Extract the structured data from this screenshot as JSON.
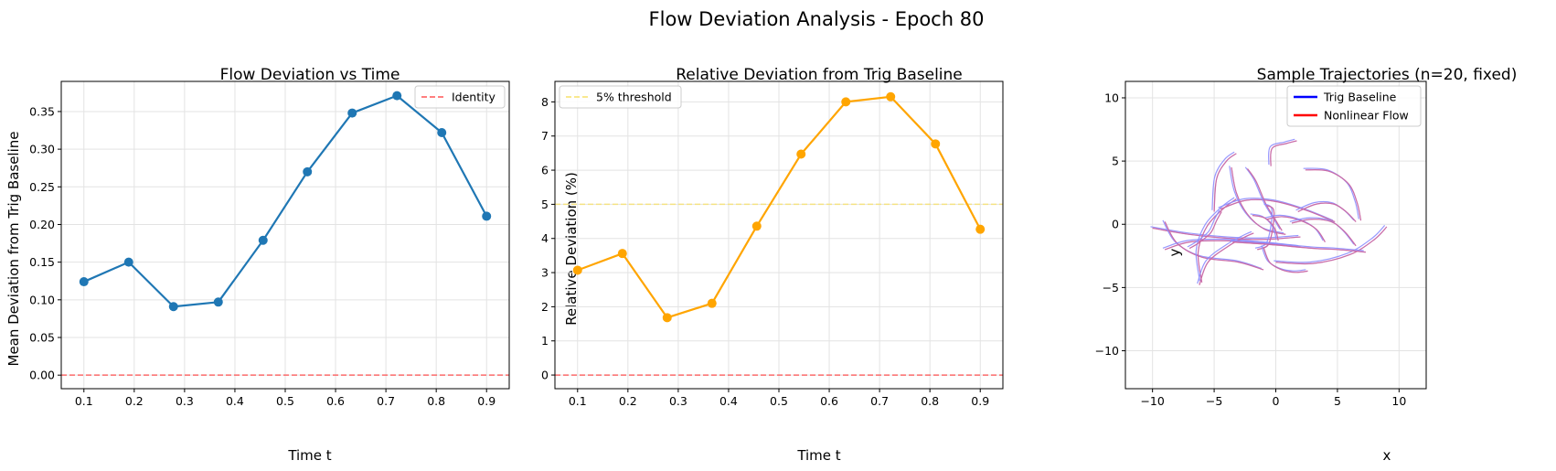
{
  "figure": {
    "suptitle": "Flow Deviation Analysis - Epoch 80"
  },
  "chart_data": [
    {
      "type": "line",
      "title": "Flow Deviation vs Time",
      "xlabel": "Time t",
      "ylabel": "Mean Deviation from Trig Baseline",
      "xlim": [
        0.055,
        0.945
      ],
      "ylim": [
        -0.018,
        0.39
      ],
      "xticks": [
        "0.1",
        "0.2",
        "0.3",
        "0.4",
        "0.5",
        "0.6",
        "0.7",
        "0.8",
        "0.9"
      ],
      "yticks": [
        "0.00",
        "0.05",
        "0.10",
        "0.15",
        "0.20",
        "0.25",
        "0.30",
        "0.35"
      ],
      "grid": true,
      "legend": {
        "position": "top-right",
        "entries": [
          "Identity"
        ]
      },
      "series": [
        {
          "color": "#1f77b4",
          "x": [
            0.1,
            0.189,
            0.278,
            0.367,
            0.456,
            0.544,
            0.633,
            0.722,
            0.811,
            0.9
          ],
          "y": [
            0.124,
            0.15,
            0.091,
            0.097,
            0.179,
            0.27,
            0.348,
            0.371,
            0.322,
            0.211
          ]
        }
      ],
      "reference_lines": [
        {
          "name": "Identity",
          "y": 0,
          "color": "#ff5555",
          "style": "dashed"
        }
      ]
    },
    {
      "type": "line",
      "title": "Relative Deviation from Trig Baseline",
      "xlabel": "Time t",
      "ylabel": "Relative Deviation (%)",
      "xlim": [
        0.055,
        0.945
      ],
      "ylim": [
        -0.4,
        8.6
      ],
      "xticks": [
        "0.1",
        "0.2",
        "0.3",
        "0.4",
        "0.5",
        "0.6",
        "0.7",
        "0.8",
        "0.9"
      ],
      "yticks": [
        "0",
        "1",
        "2",
        "3",
        "4",
        "5",
        "6",
        "7",
        "8"
      ],
      "grid": true,
      "legend": {
        "position": "top-left",
        "entries": [
          "5% threshold"
        ]
      },
      "series": [
        {
          "color": "#ffa500",
          "x": [
            0.1,
            0.189,
            0.278,
            0.367,
            0.456,
            0.544,
            0.633,
            0.722,
            0.811,
            0.9
          ],
          "y": [
            3.07,
            3.56,
            1.68,
            2.1,
            4.36,
            6.47,
            8.0,
            8.15,
            6.77,
            4.27
          ]
        }
      ],
      "reference_lines": [
        {
          "name": "5% threshold",
          "y": 5,
          "color": "#f7e26b",
          "style": "dashed"
        },
        {
          "y": 0,
          "color": "#ff5555",
          "style": "dashed"
        }
      ]
    },
    {
      "type": "line",
      "title": "Sample Trajectories (n=20, fixed)",
      "xlabel": "x",
      "ylabel": "y",
      "xlim": [
        -12.2,
        12.2
      ],
      "ylim": [
        -13,
        11.3
      ],
      "xticks": [
        "−10",
        "−5",
        "0",
        "5",
        "10"
      ],
      "yticks": [
        "−10",
        "−5",
        "0",
        "5",
        "10"
      ],
      "grid": true,
      "legend": {
        "position": "top-right",
        "entries": [
          "Trig Baseline",
          "Nonlinear Flow"
        ]
      },
      "colors": {
        "trig": "#0000ff",
        "flow": "#ff0000",
        "trig_light": "#8c8cff",
        "flow_light": "#ff8c8c",
        "overlap": "#b35fb3"
      },
      "trajectories": [
        {
          "points": [
            [
              -10,
              -0.3
            ],
            [
              -7,
              -0.8
            ],
            [
              -4,
              -1.1
            ],
            [
              -1,
              -1.2
            ],
            [
              2,
              -1.0
            ]
          ]
        },
        {
          "points": [
            [
              -9,
              0.2
            ],
            [
              -8,
              -1.5
            ],
            [
              -6,
              -2.6
            ],
            [
              -3,
              -3.0
            ],
            [
              -1,
              -3.6
            ]
          ]
        },
        {
          "points": [
            [
              -9,
              -2.0
            ],
            [
              -7,
              -1.4
            ],
            [
              -4,
              -1.3
            ],
            [
              -1,
              -1.5
            ],
            [
              2,
              -1.8
            ]
          ]
        },
        {
          "points": [
            [
              -6,
              -4.6
            ],
            [
              -6.3,
              -2.2
            ],
            [
              -5.6,
              -0.2
            ],
            [
              -4.3,
              1.2
            ],
            [
              -3.2,
              2.0
            ]
          ]
        },
        {
          "points": [
            [
              -6.2,
              -4.8
            ],
            [
              -5.5,
              -3.0
            ],
            [
              -3.8,
              -1.7
            ],
            [
              -2.5,
              -1.0
            ],
            [
              -1.8,
              -0.7
            ]
          ]
        },
        {
          "points": [
            [
              -5.0,
              1.0
            ],
            [
              -4.8,
              3.6
            ],
            [
              -4.0,
              5.0
            ],
            [
              -3.2,
              5.6
            ]
          ]
        },
        {
          "points": [
            [
              -3.6,
              4.5
            ],
            [
              -3.2,
              2.5
            ],
            [
              -2.3,
              0.8
            ],
            [
              -0.9,
              -0.4
            ],
            [
              0.8,
              -0.8
            ]
          ]
        },
        {
          "points": [
            [
              -4.5,
              1.2
            ],
            [
              -2.4,
              1.9
            ],
            [
              0,
              1.8
            ],
            [
              2.5,
              1.1
            ],
            [
              4.8,
              0.2
            ]
          ]
        },
        {
          "points": [
            [
              -2.3,
              4.4
            ],
            [
              -1.6,
              3.4
            ],
            [
              -0.8,
              1.6
            ],
            [
              0,
              0.3
            ],
            [
              0.5,
              -0.5
            ]
          ]
        },
        {
          "points": [
            [
              -1.5,
              -2.0
            ],
            [
              -0.6,
              -1.6
            ],
            [
              -0.2,
              0
            ],
            [
              -0.2,
              1.2
            ],
            [
              -0.8,
              1.5
            ]
          ]
        },
        {
          "points": [
            [
              -0.4,
              4.6
            ],
            [
              -0.3,
              6.0
            ],
            [
              0.9,
              6.4
            ],
            [
              1.7,
              6.6
            ]
          ]
        },
        {
          "points": [
            [
              -1.0,
              -1.8
            ],
            [
              -0.5,
              -3.0
            ],
            [
              0.5,
              -3.6
            ],
            [
              1.6,
              -3.8
            ],
            [
              2.6,
              -3.7
            ]
          ]
        },
        {
          "points": [
            [
              -0.7,
              0.4
            ],
            [
              0.5,
              0.6
            ],
            [
              2.0,
              0.3
            ],
            [
              3.3,
              -0.4
            ],
            [
              4.0,
              -1.4
            ]
          ]
        },
        {
          "points": [
            [
              1.3,
              0.1
            ],
            [
              2.9,
              0.4
            ],
            [
              4.5,
              0.2
            ],
            [
              5.6,
              -0.6
            ],
            [
              6.5,
              -1.7
            ]
          ]
        },
        {
          "points": [
            [
              2.4,
              4.3
            ],
            [
              4.3,
              4.2
            ],
            [
              5.9,
              3.2
            ],
            [
              6.6,
              1.7
            ],
            [
              6.9,
              0.3
            ]
          ]
        },
        {
          "points": [
            [
              -1.9,
              0.7
            ],
            [
              -0.9,
              0.5
            ],
            [
              -0.1,
              -0.3
            ],
            [
              0.2,
              -1.3
            ]
          ]
        },
        {
          "points": [
            [
              0,
              -3.0
            ],
            [
              3,
              -3.1
            ],
            [
              6,
              -2.4
            ],
            [
              8,
              -1.2
            ],
            [
              9.0,
              -0.2
            ]
          ]
        },
        {
          "points": [
            [
              -3.5,
              -1.4
            ],
            [
              -0.5,
              -1.6
            ],
            [
              3,
              -1.9
            ],
            [
              5,
              -2.0
            ],
            [
              7.3,
              -2.2
            ]
          ]
        },
        {
          "points": [
            [
              1.8,
              1.0
            ],
            [
              3.3,
              1.6
            ],
            [
              4.7,
              1.6
            ],
            [
              5.7,
              1.0
            ],
            [
              6.5,
              0.2
            ]
          ]
        },
        {
          "points": [
            [
              -7.0,
              -1.9
            ],
            [
              -6.3,
              -1.5
            ],
            [
              -5.3,
              -0.7
            ],
            [
              -4.8,
              0.3
            ],
            [
              -4.4,
              1.0
            ]
          ]
        }
      ]
    }
  ]
}
